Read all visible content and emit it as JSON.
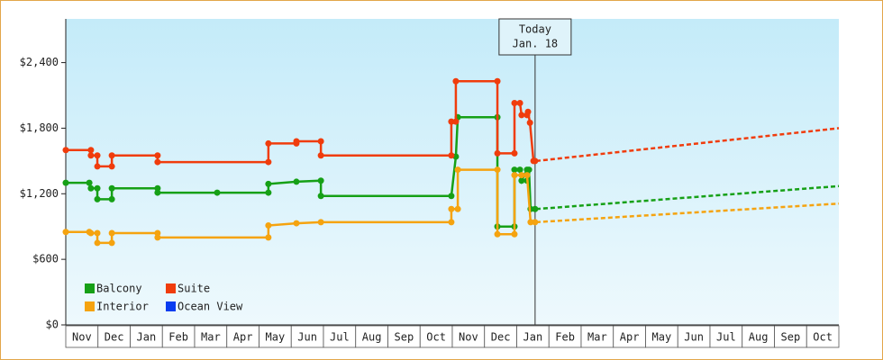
{
  "chart_data": {
    "type": "line",
    "categories": [
      "Nov",
      "Dec",
      "Jan",
      "Feb",
      "Mar",
      "Apr",
      "May",
      "Jun",
      "Jul",
      "Aug",
      "Sep",
      "Oct",
      "Nov",
      "Dec",
      "Jan",
      "Feb",
      "Mar",
      "Apr",
      "May",
      "Jun",
      "Jul",
      "Aug",
      "Sep",
      "Oct"
    ],
    "xlim": [
      0,
      24
    ],
    "ylim": [
      0,
      2800
    ],
    "yticks": [
      {
        "value": 0,
        "label": "$0"
      },
      {
        "value": 600,
        "label": "$600"
      },
      {
        "value": 1200,
        "label": "$1,200"
      },
      {
        "value": 1800,
        "label": "$1,800"
      },
      {
        "value": 2400,
        "label": "$2,400"
      }
    ],
    "annotation": {
      "x": 14.57,
      "lines": [
        "Today",
        "Jan. 18"
      ]
    },
    "series": [
      {
        "name": "Balcony",
        "color": "#16a016",
        "x": [
          0,
          0.73,
          0.78,
          0.98,
          0.98,
          1.43,
          1.43,
          2.85,
          2.85,
          4.7,
          6.29,
          6.29,
          7.16,
          7.92,
          7.92,
          11.97,
          12.11,
          12.17,
          13.4,
          13.4,
          13.93,
          13.93,
          14.1,
          14.15,
          14.32,
          14.32,
          14.38,
          14.43,
          14.57
        ],
        "values": [
          1300,
          1300,
          1250,
          1250,
          1150,
          1150,
          1250,
          1250,
          1210,
          1210,
          1210,
          1290,
          1310,
          1320,
          1180,
          1180,
          1540,
          1900,
          1900,
          900,
          900,
          1420,
          1420,
          1320,
          1420,
          1320,
          1420,
          1060,
          1060
        ],
        "projection_x": [
          14.6,
          24
        ],
        "projection_values": [
          1060,
          1270
        ]
      },
      {
        "name": "Suite",
        "color": "#f03c0c",
        "x": [
          0,
          0.78,
          0.78,
          0.98,
          0.98,
          1.43,
          1.43,
          2.85,
          2.85,
          6.29,
          6.29,
          7.16,
          7.16,
          7.92,
          7.92,
          11.97,
          11.97,
          12.11,
          12.11,
          13.4,
          13.4,
          13.93,
          13.93,
          14.1,
          14.15,
          14.32,
          14.35,
          14.41,
          14.52,
          14.57
        ],
        "values": [
          1600,
          1600,
          1550,
          1550,
          1450,
          1450,
          1550,
          1550,
          1490,
          1490,
          1660,
          1660,
          1680,
          1680,
          1550,
          1550,
          1860,
          1860,
          2230,
          2230,
          1570,
          1570,
          2030,
          2030,
          1920,
          1920,
          1950,
          1850,
          1500,
          1500
        ],
        "projection_x": [
          14.6,
          24
        ],
        "projection_values": [
          1500,
          1800
        ]
      },
      {
        "name": "Interior",
        "color": "#f5a30f",
        "x": [
          0,
          0.73,
          0.78,
          0.98,
          0.98,
          1.43,
          1.43,
          2.85,
          2.85,
          6.29,
          6.29,
          7.16,
          7.92,
          11.97,
          11.97,
          12.17,
          12.17,
          13.4,
          13.4,
          13.93,
          13.93,
          14.15,
          14.32,
          14.43,
          14.57
        ],
        "values": [
          850,
          850,
          840,
          840,
          750,
          750,
          840,
          840,
          800,
          800,
          910,
          930,
          940,
          940,
          1060,
          1060,
          1420,
          1420,
          830,
          830,
          1370,
          1370,
          1370,
          940,
          940
        ],
        "projection_x": [
          14.6,
          24
        ],
        "projection_values": [
          940,
          1110
        ]
      },
      {
        "name": "Ocean View",
        "color": "#0a3cf0",
        "x": [],
        "values": [],
        "projection_x": [],
        "projection_values": []
      }
    ]
  }
}
